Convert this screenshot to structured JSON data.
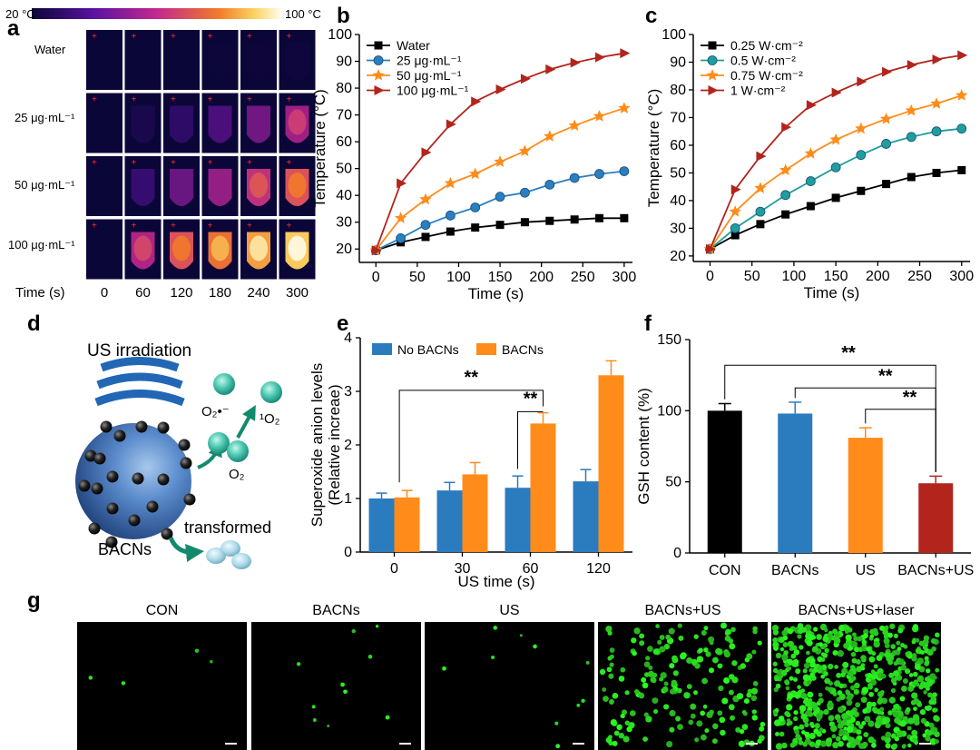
{
  "panel_labels": [
    "a",
    "b",
    "c",
    "d",
    "e",
    "f",
    "g"
  ],
  "panel_a": {
    "colorbar_min": "20 °C",
    "colorbar_max": "100 °C",
    "row_labels": [
      "Water",
      "25 μg·mL⁻¹",
      "50 μg·mL⁻¹",
      "100 μg·mL⁻¹"
    ],
    "time_label": "Time (s)",
    "times": [
      "0",
      "60",
      "120",
      "180",
      "240",
      "300"
    ],
    "intensity": [
      [
        0.0,
        0.0,
        0.0,
        0.02,
        0.03,
        0.04
      ],
      [
        0.0,
        0.12,
        0.22,
        0.32,
        0.42,
        0.52
      ],
      [
        0.0,
        0.25,
        0.4,
        0.5,
        0.6,
        0.7
      ],
      [
        0.0,
        0.55,
        0.7,
        0.8,
        0.9,
        0.98
      ]
    ]
  },
  "panel_d": {
    "title": "US irradiation",
    "superoxide": "O₂•⁻",
    "singlet": "¹O₂",
    "oxygen": "O₂",
    "transformed": "transformed",
    "particle": "BACNs"
  },
  "panel_g": {
    "labels": [
      "CON",
      "BACNs",
      "US",
      "BACNs+US",
      "BACNs+US+laser"
    ],
    "cell_density": [
      4,
      10,
      10,
      180,
      600
    ]
  },
  "chart_data": [
    {
      "id": "b",
      "type": "line",
      "xlabel": "Time (s)",
      "ylabel": "Temperature (°C)",
      "xlim": [
        -20,
        310
      ],
      "ylim": [
        15,
        100
      ],
      "xticks": [
        0,
        50,
        100,
        150,
        200,
        250,
        300
      ],
      "yticks": [
        20,
        30,
        40,
        50,
        60,
        70,
        80,
        90,
        100
      ],
      "legend_position": "top-left",
      "x": [
        0,
        30,
        60,
        90,
        120,
        150,
        180,
        210,
        240,
        270,
        300
      ],
      "series": [
        {
          "name": "Water",
          "marker": "square",
          "color": "#000000",
          "values": [
            19.5,
            22.5,
            24.5,
            26.5,
            28,
            29,
            30,
            30.5,
            31,
            31.5,
            31.5
          ]
        },
        {
          "name": "25 μg·mL⁻¹",
          "marker": "circle",
          "color": "#2a7fbe",
          "values": [
            19.5,
            24,
            29,
            32.5,
            35.5,
            39.5,
            41,
            44,
            46.5,
            48,
            49
          ]
        },
        {
          "name": "50 μg·mL⁻¹",
          "marker": "star",
          "color": "#ff8c1a",
          "values": [
            19.5,
            31.5,
            38.5,
            44.5,
            48,
            52.5,
            56.5,
            62,
            66,
            69.5,
            72.5
          ]
        },
        {
          "name": "100 μg·mL⁻¹",
          "marker": "triangle-right",
          "color": "#b2241c",
          "values": [
            19.5,
            44.5,
            56,
            66.5,
            75,
            79.5,
            83.5,
            87,
            89.5,
            91.5,
            93
          ]
        }
      ]
    },
    {
      "id": "c",
      "type": "line",
      "xlabel": "Time (s)",
      "ylabel": "Temperature (°C)",
      "xlim": [
        -20,
        310
      ],
      "ylim": [
        18,
        100
      ],
      "xticks": [
        0,
        50,
        100,
        150,
        200,
        250,
        300
      ],
      "yticks": [
        20,
        30,
        40,
        50,
        60,
        70,
        80,
        90,
        100
      ],
      "legend_position": "top-left",
      "x": [
        0,
        30,
        60,
        90,
        120,
        150,
        180,
        210,
        240,
        270,
        300
      ],
      "series": [
        {
          "name": "0.25 W·cm⁻²",
          "marker": "square",
          "color": "#000000",
          "values": [
            22.5,
            27.5,
            31.5,
            35,
            38,
            41,
            43.5,
            46,
            48.5,
            50,
            51
          ]
        },
        {
          "name": "0.5 W·cm⁻²",
          "marker": "circle",
          "color": "#1f9e9e",
          "values": [
            22.5,
            30,
            36,
            42,
            47,
            52,
            56.5,
            60.5,
            63,
            65,
            66
          ]
        },
        {
          "name": "0.75 W·cm⁻²",
          "marker": "star",
          "color": "#ff8c1a",
          "values": [
            22.5,
            36,
            44.5,
            51,
            57,
            62,
            66,
            69.5,
            72.5,
            75,
            78
          ]
        },
        {
          "name": "1 W·cm⁻²",
          "marker": "triangle-right",
          "color": "#b2241c",
          "values": [
            22.5,
            44,
            56,
            66.5,
            74.5,
            79,
            83,
            86.5,
            89,
            91,
            92.5
          ]
        }
      ]
    },
    {
      "id": "e",
      "type": "bar",
      "xlabel": "US time (s)",
      "ylabel": "Superoxide anion levels (Relative increae)",
      "ylabel_lines": [
        "Superoxide anion levels",
        "(Relative increae)"
      ],
      "categories": [
        "0",
        "30",
        "60",
        "120"
      ],
      "ylim": [
        0,
        4
      ],
      "yticks": [
        0,
        1,
        2,
        3,
        4
      ],
      "legend_position": "top",
      "series": [
        {
          "name": "No BACNs",
          "color": "#2b7bbf",
          "values": [
            1.0,
            1.15,
            1.2,
            1.32
          ],
          "errors": [
            0.1,
            0.15,
            0.22,
            0.22
          ]
        },
        {
          "name": "BACNs",
          "color": "#ff8c1a",
          "values": [
            1.02,
            1.45,
            2.4,
            3.3
          ],
          "errors": [
            0.13,
            0.22,
            0.2,
            0.27
          ]
        }
      ],
      "significance": [
        {
          "from": "0 No BACNs",
          "to": "60 BACNs",
          "text": "**"
        },
        {
          "from": "60 No BACNs",
          "to": "60 BACNs",
          "text": "**"
        }
      ]
    },
    {
      "id": "f",
      "type": "bar",
      "xlabel": "",
      "ylabel": "GSH content (%)",
      "categories": [
        "CON",
        "BACNs",
        "US",
        "BACNs+US"
      ],
      "ylim": [
        0,
        150
      ],
      "yticks": [
        0,
        50,
        100,
        150
      ],
      "colors": [
        "#000000",
        "#2b7bbf",
        "#ff8c1a",
        "#b2241c"
      ],
      "values": [
        100,
        98,
        81,
        49
      ],
      "errors": [
        5,
        8,
        7,
        5
      ],
      "significance": [
        {
          "from": "CON",
          "to": "BACNs+US",
          "text": "**"
        },
        {
          "from": "BACNs",
          "to": "BACNs+US",
          "text": "**"
        },
        {
          "from": "US",
          "to": "BACNs+US",
          "text": "**"
        }
      ]
    }
  ]
}
